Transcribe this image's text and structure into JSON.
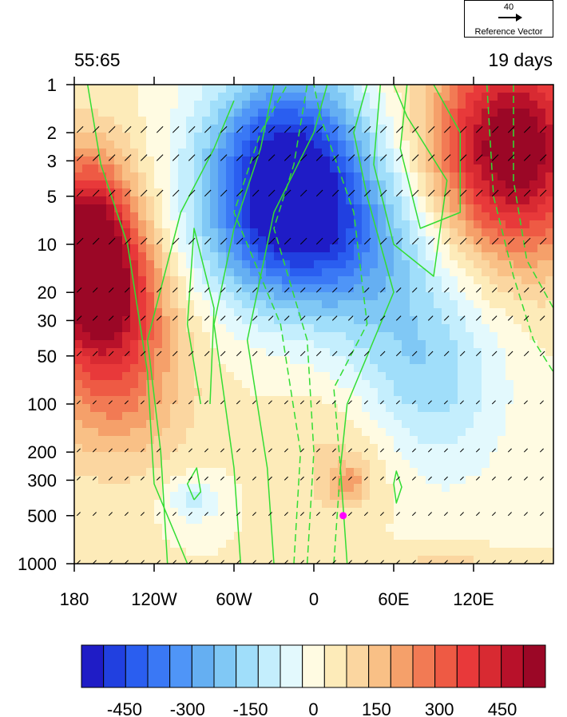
{
  "chart_data": {
    "type": "heatmap",
    "title_left": "55:65",
    "title_right": "19 days",
    "x_ticks": [
      "180",
      "120W",
      "60W",
      "0",
      "60E",
      "120E"
    ],
    "x_tick_lon": [
      -180,
      -120,
      -60,
      0,
      60,
      120
    ],
    "x_range": [
      -180,
      180
    ],
    "y_scale": "log",
    "y_ticks": [
      "1",
      "2",
      "3",
      "5",
      "10",
      "20",
      "30",
      "50",
      "100",
      "200",
      "300",
      "500",
      "1000"
    ],
    "y_tick_values": [
      1,
      2,
      3,
      5,
      10,
      20,
      30,
      50,
      100,
      200,
      300,
      500,
      1000
    ],
    "y_range": [
      1,
      1000
    ],
    "reference_vector": {
      "magnitude": "40",
      "label": "Reference Vector"
    },
    "marker": {
      "lon": 22,
      "pressure": 500,
      "color": "#ff00ff"
    },
    "colorbar": {
      "levels": [
        -550,
        -500,
        -450,
        -400,
        -350,
        -300,
        -250,
        -200,
        -150,
        -100,
        -50,
        0,
        50,
        100,
        150,
        200,
        250,
        300,
        350,
        400,
        450,
        500,
        550
      ],
      "tick_labels": [
        "-450",
        "-300",
        "-150",
        "0",
        "150",
        "300",
        "450"
      ],
      "tick_values": [
        -450,
        -300,
        -150,
        0,
        150,
        300,
        450
      ],
      "colors": [
        "#1f1cc6",
        "#2140e0",
        "#2a5ef0",
        "#3a78f5",
        "#4f95f7",
        "#65aff2",
        "#80c8f5",
        "#a0defa",
        "#c4eefd",
        "#e3f9fd",
        "#fffbe2",
        "#fdebb9",
        "#fbd6a0",
        "#f9c086",
        "#f5a06a",
        "#f27a54",
        "#ee5a44",
        "#e8393a",
        "#d82a32",
        "#b8112a",
        "#9b0726"
      ]
    },
    "features": [
      {
        "name": "positive",
        "lon": -170,
        "logp": 1.0,
        "rx": 35,
        "ry": 0.55,
        "value": 520
      },
      {
        "name": "positive",
        "lon": -150,
        "logp": 1.4,
        "rx": 45,
        "ry": 0.5,
        "value": 300
      },
      {
        "name": "positive",
        "lon": -150,
        "logp": 2.0,
        "rx": 55,
        "ry": 0.45,
        "value": 150
      },
      {
        "name": "positive",
        "lon": 150,
        "logp": 0.4,
        "rx": 60,
        "ry": 0.7,
        "value": 520
      },
      {
        "name": "positive",
        "lon": 30,
        "logp": 2.3,
        "rx": 50,
        "ry": 0.45,
        "value": 100
      },
      {
        "name": "positive",
        "lon": 25,
        "logp": 2.5,
        "rx": 15,
        "ry": 0.12,
        "value": 150
      },
      {
        "name": "positive",
        "lon": 100,
        "logp": 3.0,
        "rx": 40,
        "ry": 0.1,
        "value": 80
      },
      {
        "name": "negative",
        "lon": -20,
        "logp": 0.5,
        "rx": 60,
        "ry": 0.6,
        "value": -520
      },
      {
        "name": "negative",
        "lon": 0,
        "logp": 1.0,
        "rx": 80,
        "ry": 0.5,
        "value": -300
      },
      {
        "name": "negative",
        "lon": 80,
        "logp": 1.8,
        "rx": 60,
        "ry": 0.7,
        "value": -200
      },
      {
        "name": "negative",
        "lon": -90,
        "logp": 2.6,
        "rx": 20,
        "ry": 0.15,
        "value": -120
      }
    ]
  }
}
